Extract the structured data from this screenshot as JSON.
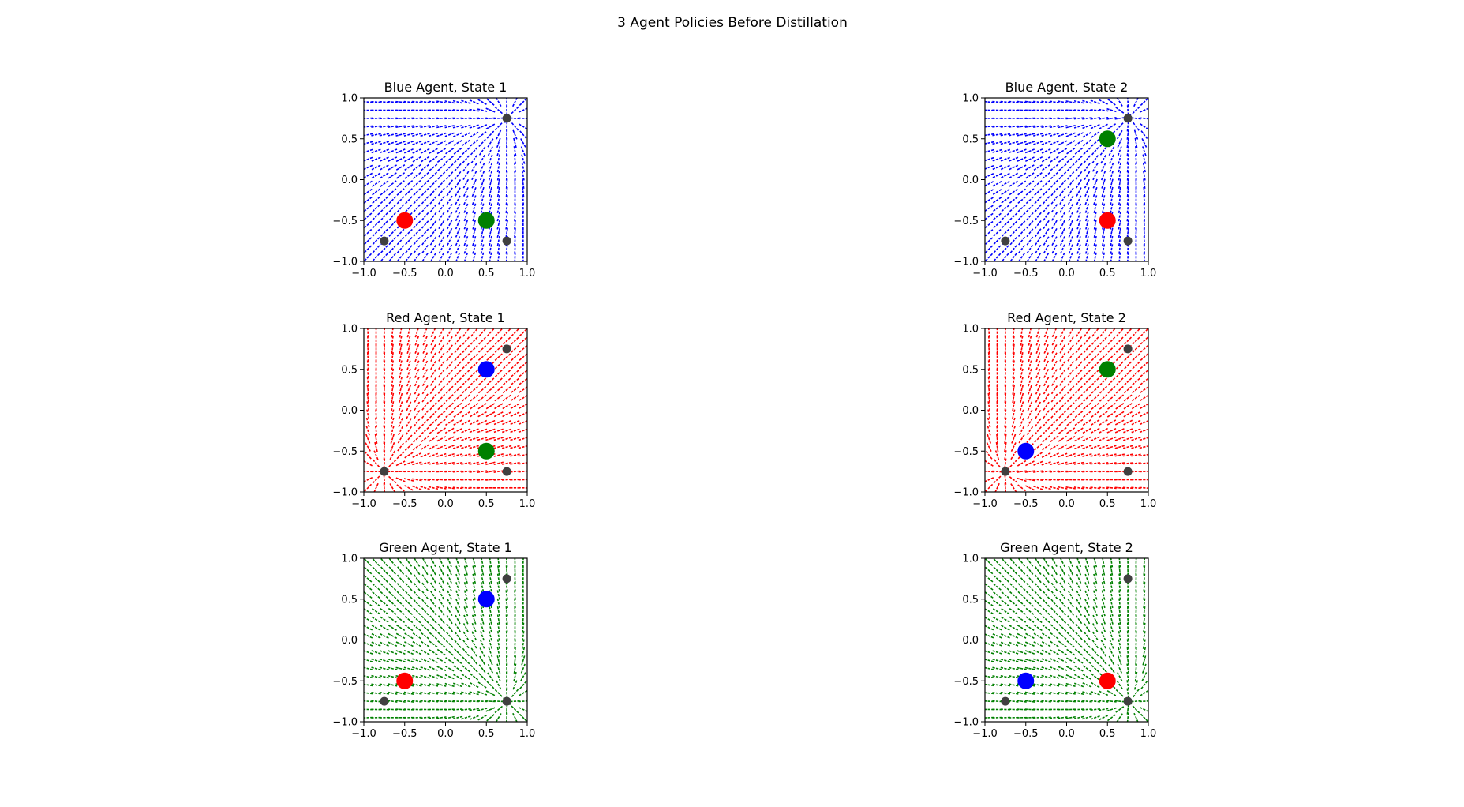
{
  "figure": {
    "title": "3 Agent Policies Before Distillation"
  },
  "colors": {
    "blue": "#0000ff",
    "red": "#ff0000",
    "green": "#008000",
    "landmark": "#404040",
    "axis": "#000000"
  },
  "chart_data": [
    {
      "type": "quiver",
      "title": "Blue Agent, State 1",
      "row": 0,
      "col": 0,
      "field_color": "blue",
      "xlim": [
        -1,
        1
      ],
      "ylim": [
        -1,
        1
      ],
      "xticks": [
        "−1.0",
        "−0.5",
        "0.0",
        "0.5",
        "1.0"
      ],
      "yticks": [
        "−1.0",
        "−0.5",
        "0.0",
        "0.5",
        "1.0"
      ],
      "agents": [
        {
          "color": "red",
          "x": -0.5,
          "y": -0.5
        },
        {
          "color": "green",
          "x": 0.5,
          "y": -0.5
        }
      ],
      "landmarks": [
        {
          "x": 0.75,
          "y": 0.75
        },
        {
          "x": -0.75,
          "y": -0.75
        },
        {
          "x": 0.75,
          "y": -0.75
        }
      ],
      "attractor": {
        "x": 0.75,
        "y": 0.75
      }
    },
    {
      "type": "quiver",
      "title": "Blue Agent, State 2",
      "row": 0,
      "col": 1,
      "field_color": "blue",
      "xlim": [
        -1,
        1
      ],
      "ylim": [
        -1,
        1
      ],
      "xticks": [
        "−1.0",
        "−0.5",
        "0.0",
        "0.5",
        "1.0"
      ],
      "yticks": [
        "−1.0",
        "−0.5",
        "0.0",
        "0.5",
        "1.0"
      ],
      "agents": [
        {
          "color": "green",
          "x": 0.5,
          "y": 0.5
        },
        {
          "color": "red",
          "x": 0.5,
          "y": -0.5
        }
      ],
      "landmarks": [
        {
          "x": 0.75,
          "y": 0.75
        },
        {
          "x": -0.75,
          "y": -0.75
        },
        {
          "x": 0.75,
          "y": -0.75
        }
      ],
      "attractor": {
        "x": 0.75,
        "y": 0.75
      }
    },
    {
      "type": "quiver",
      "title": "Red Agent, State 1",
      "row": 1,
      "col": 0,
      "field_color": "red",
      "xlim": [
        -1,
        1
      ],
      "ylim": [
        -1,
        1
      ],
      "xticks": [
        "−1.0",
        "−0.5",
        "0.0",
        "0.5",
        "1.0"
      ],
      "yticks": [
        "−1.0",
        "−0.5",
        "0.0",
        "0.5",
        "1.0"
      ],
      "agents": [
        {
          "color": "blue",
          "x": 0.5,
          "y": 0.5
        },
        {
          "color": "green",
          "x": 0.5,
          "y": -0.5
        }
      ],
      "landmarks": [
        {
          "x": 0.75,
          "y": 0.75
        },
        {
          "x": -0.75,
          "y": -0.75
        },
        {
          "x": 0.75,
          "y": -0.75
        }
      ],
      "attractor": {
        "x": -0.75,
        "y": -0.75
      }
    },
    {
      "type": "quiver",
      "title": "Red Agent, State 2",
      "row": 1,
      "col": 1,
      "field_color": "red",
      "xlim": [
        -1,
        1
      ],
      "ylim": [
        -1,
        1
      ],
      "xticks": [
        "−1.0",
        "−0.5",
        "0.0",
        "0.5",
        "1.0"
      ],
      "yticks": [
        "−1.0",
        "−0.5",
        "0.0",
        "0.5",
        "1.0"
      ],
      "agents": [
        {
          "color": "green",
          "x": 0.5,
          "y": 0.5
        },
        {
          "color": "blue",
          "x": -0.5,
          "y": -0.5
        }
      ],
      "landmarks": [
        {
          "x": 0.75,
          "y": 0.75
        },
        {
          "x": -0.75,
          "y": -0.75
        },
        {
          "x": 0.75,
          "y": -0.75
        }
      ],
      "attractor": {
        "x": -0.75,
        "y": -0.75
      }
    },
    {
      "type": "quiver",
      "title": "Green Agent, State 1",
      "row": 2,
      "col": 0,
      "field_color": "green",
      "xlim": [
        -1,
        1
      ],
      "ylim": [
        -1,
        1
      ],
      "xticks": [
        "−1.0",
        "−0.5",
        "0.0",
        "0.5",
        "1.0"
      ],
      "yticks": [
        "−1.0",
        "−0.5",
        "0.0",
        "0.5",
        "1.0"
      ],
      "agents": [
        {
          "color": "blue",
          "x": 0.5,
          "y": 0.5
        },
        {
          "color": "red",
          "x": -0.5,
          "y": -0.5
        }
      ],
      "landmarks": [
        {
          "x": 0.75,
          "y": 0.75
        },
        {
          "x": -0.75,
          "y": -0.75
        },
        {
          "x": 0.75,
          "y": -0.75
        }
      ],
      "attractor": {
        "x": 0.75,
        "y": -0.75
      }
    },
    {
      "type": "quiver",
      "title": "Green Agent, State 2",
      "row": 2,
      "col": 1,
      "field_color": "green",
      "xlim": [
        -1,
        1
      ],
      "ylim": [
        -1,
        1
      ],
      "xticks": [
        "−1.0",
        "−0.5",
        "0.0",
        "0.5",
        "1.0"
      ],
      "yticks": [
        "−1.0",
        "−0.5",
        "0.0",
        "0.5",
        "1.0"
      ],
      "agents": [
        {
          "color": "blue",
          "x": -0.5,
          "y": -0.5
        },
        {
          "color": "red",
          "x": 0.5,
          "y": -0.5
        }
      ],
      "landmarks": [
        {
          "x": 0.75,
          "y": 0.75
        },
        {
          "x": -0.75,
          "y": -0.75
        },
        {
          "x": 0.75,
          "y": -0.75
        }
      ],
      "attractor": {
        "x": 0.75,
        "y": -0.75
      }
    }
  ]
}
